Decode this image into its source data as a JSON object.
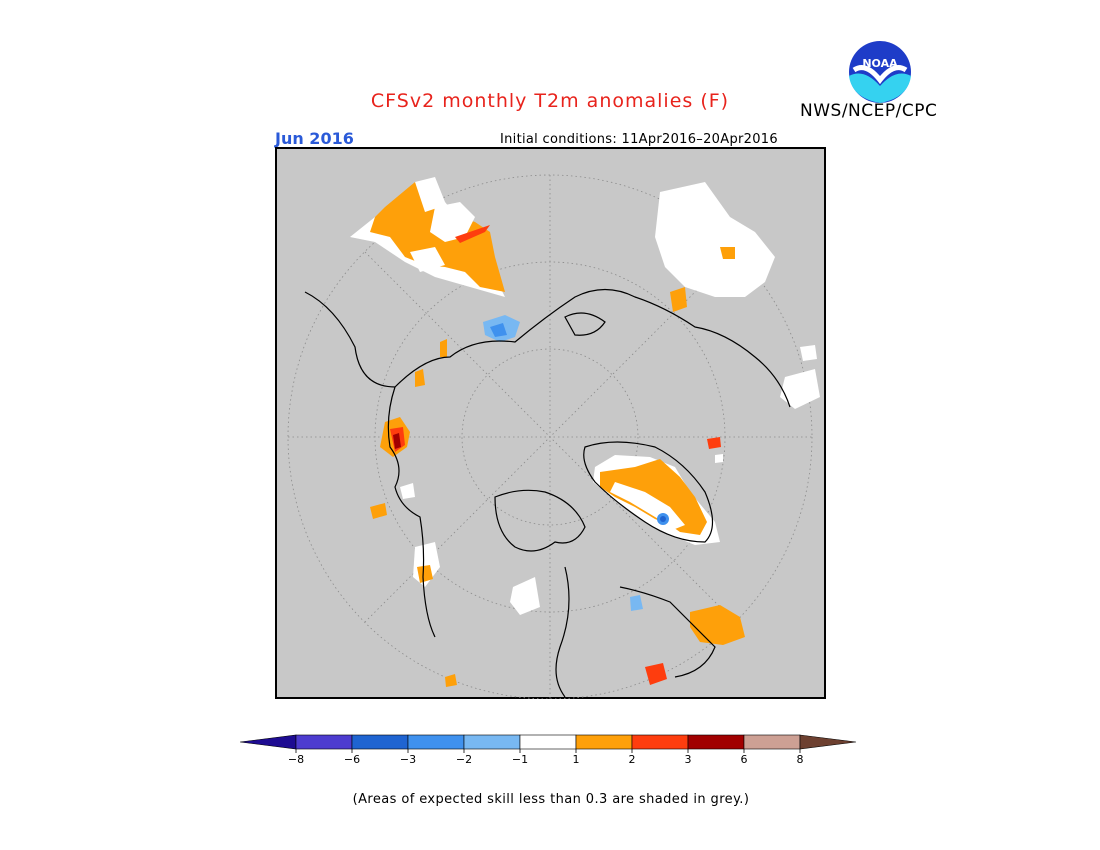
{
  "title": "CFSv2 monthly T2m anomalies (F)",
  "agency": "NWS/NCEP/CPC",
  "logo_text": "NOAA",
  "month": "Jun 2016",
  "initial_conditions": "Initial conditions: 11Apr2016–20Apr2016",
  "legend": {
    "ticks": [
      "−8",
      "−6",
      "−3",
      "−2",
      "−1",
      "1",
      "2",
      "3",
      "6",
      "8"
    ],
    "colors": [
      "#1e0c92",
      "#4d3ccf",
      "#1f64d1",
      "#3f91ee",
      "#78b8f2",
      "#ffffff",
      "#fea00a",
      "#fe3d0e",
      "#a10000",
      "#cda094",
      "#6d4030"
    ]
  },
  "note": "(Areas of expected skill less than 0.3 are shaded in grey.)",
  "map_colors": {
    "ocean_grey": "#c8c8c8",
    "white": "#ffffff",
    "orange": "#fea00a",
    "red": "#fe3d0e",
    "darkred": "#a10000",
    "lightblue": "#78b8f2",
    "blue": "#3f91ee"
  }
}
